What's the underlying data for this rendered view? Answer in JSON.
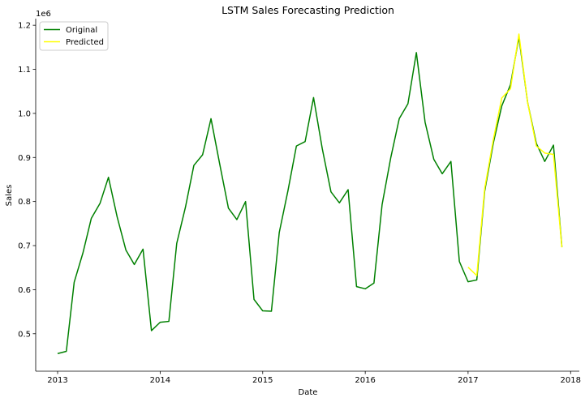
{
  "chart_data": {
    "type": "line",
    "title": "LSTM Sales Forecasting Prediction",
    "xlabel": "Date",
    "ylabel": "Sales",
    "y_offset_label": "1e6",
    "legend_position": "top-left",
    "grid": false,
    "xlim": [
      "2012-10-15",
      "2018-02-01"
    ],
    "ylim": [
      0.415,
      1.215
    ],
    "x_ticks": [
      "2013",
      "2014",
      "2015",
      "2016",
      "2017",
      "2018"
    ],
    "y_ticks": [
      "0.5",
      "0.6",
      "0.7",
      "0.8",
      "0.9",
      "1.0",
      "1.1",
      "1.2"
    ],
    "x": [
      "2013-01-01",
      "2013-02-01",
      "2013-03-01",
      "2013-04-01",
      "2013-05-01",
      "2013-06-01",
      "2013-07-01",
      "2013-08-01",
      "2013-09-01",
      "2013-10-01",
      "2013-11-01",
      "2013-12-01",
      "2014-01-01",
      "2014-02-01",
      "2014-03-01",
      "2014-04-01",
      "2014-05-01",
      "2014-06-01",
      "2014-07-01",
      "2014-08-01",
      "2014-09-01",
      "2014-10-01",
      "2014-11-01",
      "2014-12-01",
      "2015-01-01",
      "2015-02-01",
      "2015-03-01",
      "2015-04-01",
      "2015-05-01",
      "2015-06-01",
      "2015-07-01",
      "2015-08-01",
      "2015-09-01",
      "2015-10-01",
      "2015-11-01",
      "2015-12-01",
      "2016-01-01",
      "2016-02-01",
      "2016-03-01",
      "2016-04-01",
      "2016-05-01",
      "2016-06-01",
      "2016-07-01",
      "2016-08-01",
      "2016-09-01",
      "2016-10-01",
      "2016-11-01",
      "2016-12-01",
      "2017-01-01",
      "2017-02-01",
      "2017-03-01",
      "2017-04-01",
      "2017-05-01",
      "2017-06-01",
      "2017-07-01",
      "2017-08-01",
      "2017-09-01",
      "2017-10-01",
      "2017-11-01",
      "2017-12-01"
    ],
    "series": [
      {
        "name": "Original",
        "color": "#008000",
        "values": [
          0.455,
          0.46,
          0.617,
          0.683,
          0.762,
          0.796,
          0.855,
          0.765,
          0.69,
          0.657,
          0.692,
          0.507,
          0.526,
          0.528,
          0.705,
          0.787,
          0.882,
          0.906,
          0.988,
          0.885,
          0.785,
          0.759,
          0.8,
          0.578,
          0.552,
          0.551,
          0.73,
          0.825,
          0.926,
          0.936,
          1.036,
          0.92,
          0.822,
          0.797,
          0.827,
          0.607,
          0.602,
          0.615,
          0.793,
          0.9,
          0.988,
          1.022,
          1.138,
          0.98,
          0.896,
          0.863,
          0.891,
          0.664,
          0.618,
          0.622,
          0.823,
          0.933,
          1.017,
          1.065,
          1.173,
          1.025,
          0.932,
          0.891,
          0.928,
          0.697
        ]
      },
      {
        "name": "Predicted",
        "color": "#ffff00",
        "x": [
          "2017-01-01",
          "2017-02-01",
          "2017-03-01",
          "2017-04-01",
          "2017-05-01",
          "2017-06-01",
          "2017-07-01",
          "2017-08-01",
          "2017-09-01",
          "2017-10-01",
          "2017-11-01",
          "2017-12-01"
        ],
        "values": [
          0.651,
          0.632,
          0.829,
          0.941,
          1.035,
          1.056,
          1.18,
          1.025,
          0.926,
          0.91,
          0.907,
          0.696
        ]
      }
    ]
  }
}
